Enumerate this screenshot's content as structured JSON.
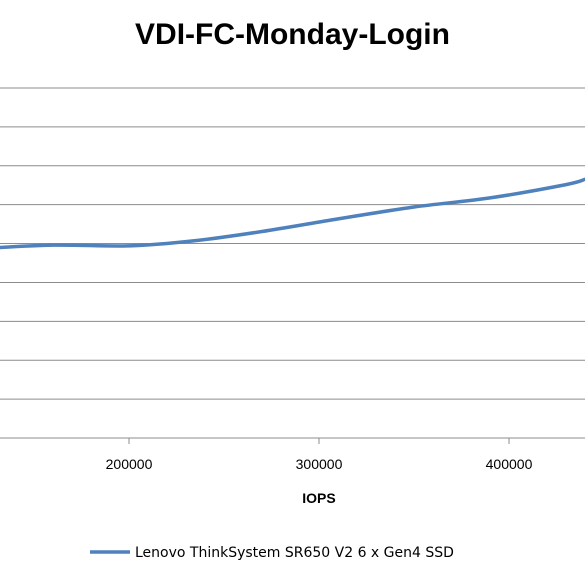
{
  "chart_data": {
    "type": "line",
    "title": "VDI-FC-Monday-Login",
    "xlabel": "IOPS",
    "ylabel": "",
    "x_ticks": [
      200000,
      300000,
      400000
    ],
    "grid": true,
    "legend_position": "bottom",
    "series": [
      {
        "name": "Lenovo ThinkSystem SR650 V2 6 x Gen4 SSD",
        "color": "#4f81bd",
        "x": [
          121000,
          160000,
          200000,
          235000,
          270000,
          310000,
          350000,
          390000,
          430000,
          440000
        ],
        "y": [
          0.541,
          0.551,
          0.549,
          0.564,
          0.59,
          0.626,
          0.66,
          0.686,
          0.724,
          0.739
        ]
      }
    ]
  }
}
